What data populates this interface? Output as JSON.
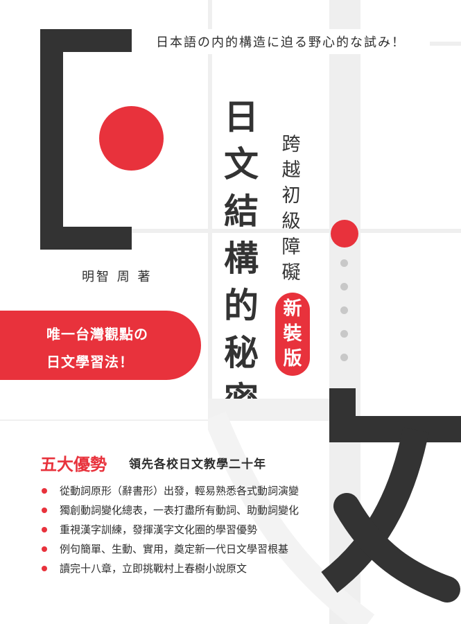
{
  "tagline": "日本語の内的構造に迫る野心的な試み！",
  "title": [
    "日",
    "文",
    "結",
    "構",
    "的",
    "秘",
    "密"
  ],
  "subtitle": [
    "跨",
    "越",
    "初",
    "級",
    "障",
    "礙"
  ],
  "edition": [
    "新",
    "裝",
    "版"
  ],
  "author": "明智 周 著",
  "banner": {
    "line1": "唯一台灣觀點の",
    "line2": "日文學習法！"
  },
  "advantages": {
    "title": "五大優勢",
    "subtitle": "領先各校日文教學二十年",
    "items": [
      "從動詞原形（辭書形）出發，輕易熟悉各式動詞演變",
      "獨創動詞變化總表，一表打盡所有動詞、助動詞變化",
      "重視漢字訓練，發揮漢字文化圈的學習優勢",
      "例句簡單、生動、實用，奠定新一代日文學習根基",
      "讀完十八章，立即挑戰村上春樹小說原文"
    ]
  },
  "colors": {
    "accent": "#e8323c",
    "dark": "#333333",
    "grid": "#efefef"
  }
}
